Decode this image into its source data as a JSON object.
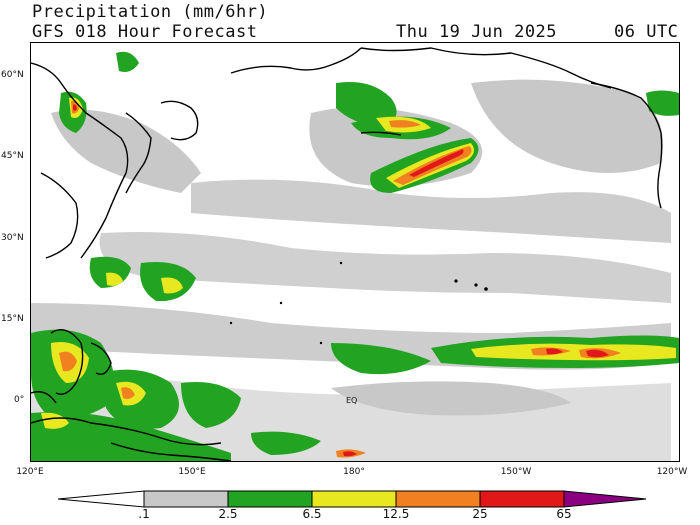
{
  "header": {
    "line1": "Precipitation (mm/6hr)",
    "line2_left": "GFS 018 Hour Forecast",
    "date": "Thu 19 Jun 2025",
    "time": "06 UTC"
  },
  "map": {
    "region": "North Pacific Ocean",
    "lat_labels": [
      "60°N",
      "45°N",
      "30°N",
      "15°N",
      "0°"
    ],
    "lon_labels": [
      "120°E",
      "150°E",
      "180°",
      "150°W",
      "120°W"
    ],
    "equator_label": "EQ",
    "colors": {
      "trace": "#c8c8c8",
      "light": "#22a322",
      "moderate": "#e8e820",
      "heavy": "#f08020",
      "very_heavy": "#e01818",
      "extreme": "#8b0080",
      "coast": "#000000"
    }
  },
  "colorbar": {
    "labels": [
      ".1",
      "2.5",
      "6.5",
      "12.5",
      "25",
      "65"
    ],
    "colors": [
      "#ffffff",
      "#c8c8c8",
      "#22a322",
      "#e8e820",
      "#f08020",
      "#e01818",
      "#8b0080"
    ]
  }
}
